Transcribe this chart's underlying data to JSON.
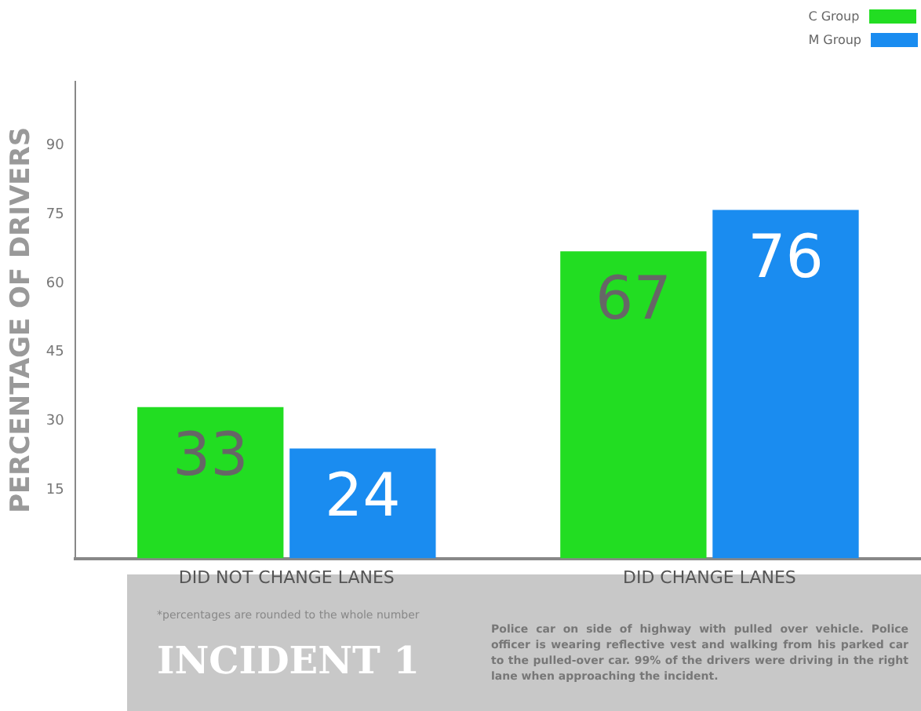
{
  "chart_data": {
    "type": "bar",
    "ylabel": "PERCENTAGE OF DRIVERS",
    "categories": [
      "DID NOT CHANGE LANES",
      "DID CHANGE LANES"
    ],
    "series": [
      {
        "name": "C Group",
        "color": "#22dd22",
        "values": [
          33,
          67
        ]
      },
      {
        "name": "M Group",
        "color": "#1a8cf0",
        "values": [
          24,
          76
        ]
      }
    ],
    "ylim": [
      0,
      104
    ],
    "yticks": [
      15,
      30,
      45,
      60,
      75,
      90
    ],
    "grid": false,
    "legend": "top right",
    "data_labels": true,
    "annotations": [
      "*percentages are rounded to the whole number",
      "INCIDENT 1",
      "Police car on side of highway with pulled over vehicle. Police officer is wearing reflective vest and walking from his parked car to the pulled-over car.  99% of the drivers were driving in the right lane when approaching the incident."
    ]
  }
}
